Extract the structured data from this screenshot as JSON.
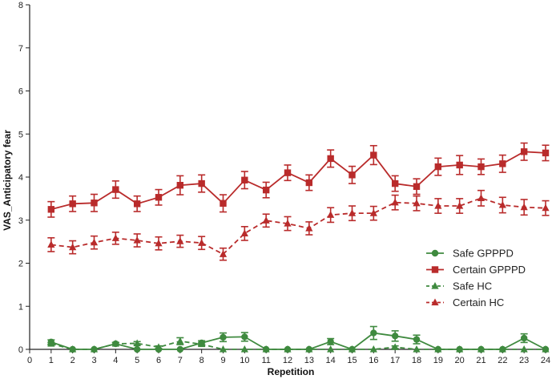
{
  "chart_data": {
    "type": "line",
    "xlabel": "Repetition",
    "ylabel": "VAS_Anticipatory fear",
    "xlim": [
      0,
      24
    ],
    "ylim": [
      0,
      8
    ],
    "x_ticks": [
      0,
      1,
      2,
      3,
      4,
      5,
      6,
      7,
      8,
      9,
      10,
      11,
      12,
      13,
      14,
      15,
      16,
      17,
      18,
      19,
      20,
      21,
      22,
      23,
      24
    ],
    "y_ticks": [
      0,
      1,
      2,
      3,
      4,
      5,
      6,
      7,
      8
    ],
    "x": [
      1,
      2,
      3,
      4,
      5,
      6,
      7,
      8,
      9,
      10,
      11,
      12,
      13,
      14,
      15,
      16,
      17,
      18,
      19,
      20,
      21,
      22,
      23,
      24
    ],
    "legend_position": "bottom-right",
    "series": [
      {
        "name": "Safe GPPPD",
        "color": "#3f8a3f",
        "marker": "circle",
        "line": "solid",
        "values": [
          0.17,
          0,
          0,
          0.13,
          0,
          0,
          0,
          0.15,
          0.28,
          0.29,
          0,
          0,
          0,
          0.18,
          0,
          0.38,
          0.31,
          0.23,
          0,
          0,
          0,
          0,
          0.26,
          0
        ],
        "errors": [
          0.05,
          0,
          0,
          0.03,
          0,
          0,
          0,
          0.05,
          0.1,
          0.1,
          0,
          0,
          0,
          0.07,
          0,
          0.15,
          0.12,
          0.1,
          0,
          0,
          0,
          0,
          0.1,
          0
        ]
      },
      {
        "name": "Certain GPPPD",
        "color": "#b92b2b",
        "marker": "square",
        "line": "solid",
        "values": [
          3.25,
          3.38,
          3.4,
          3.71,
          3.38,
          3.53,
          3.81,
          3.85,
          3.39,
          3.93,
          3.7,
          4.1,
          3.87,
          4.43,
          4.05,
          4.51,
          3.85,
          3.78,
          4.24,
          4.28,
          4.24,
          4.31,
          4.59,
          4.56
        ],
        "errors": [
          0.18,
          0.18,
          0.2,
          0.2,
          0.18,
          0.18,
          0.22,
          0.2,
          0.2,
          0.2,
          0.18,
          0.18,
          0.18,
          0.2,
          0.2,
          0.22,
          0.18,
          0.18,
          0.2,
          0.22,
          0.18,
          0.2,
          0.2,
          0.18
        ]
      },
      {
        "name": "Safe HC",
        "color": "#3f8a3f",
        "marker": "triangle",
        "line": "dashed",
        "values": [
          0.13,
          0,
          0,
          0.13,
          0.14,
          0.05,
          0.19,
          0.12,
          0,
          0,
          0,
          0,
          0,
          0,
          0,
          0,
          0.05,
          0,
          0,
          0,
          0,
          0,
          0,
          0
        ],
        "errors": [
          0.03,
          0,
          0,
          0.03,
          0.04,
          0.03,
          0.08,
          0.04,
          0,
          0,
          0,
          0,
          0,
          0,
          0,
          0,
          0.03,
          0,
          0,
          0,
          0,
          0,
          0,
          0
        ]
      },
      {
        "name": "Certain HC",
        "color": "#b92b2b",
        "marker": "triangle",
        "line": "dashed",
        "values": [
          2.43,
          2.37,
          2.48,
          2.58,
          2.53,
          2.46,
          2.51,
          2.47,
          2.21,
          2.69,
          2.99,
          2.92,
          2.81,
          3.12,
          3.16,
          3.16,
          3.41,
          3.39,
          3.33,
          3.33,
          3.51,
          3.35,
          3.3,
          3.28
        ],
        "errors": [
          0.16,
          0.15,
          0.15,
          0.14,
          0.15,
          0.15,
          0.14,
          0.15,
          0.14,
          0.16,
          0.15,
          0.16,
          0.15,
          0.17,
          0.17,
          0.16,
          0.17,
          0.17,
          0.17,
          0.17,
          0.18,
          0.18,
          0.18,
          0.17
        ]
      }
    ]
  }
}
